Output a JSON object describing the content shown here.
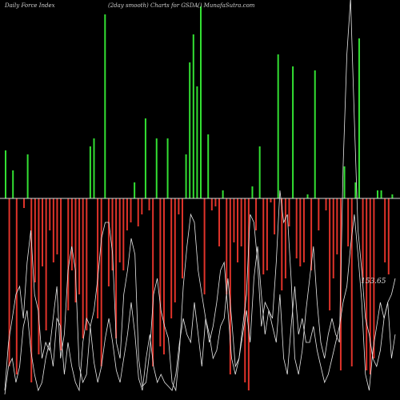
{
  "header": {
    "left": "Daily Force  Index",
    "center": "(2day smooth) Charts for GSDA",
    "right": "() MunafaSutra.com"
  },
  "chart_data": {
    "type": "bar",
    "title": "",
    "baseline": 0,
    "ylim": [
      -230,
      250
    ],
    "values": [
      60,
      -210,
      35,
      -220,
      0,
      -12,
      55,
      -230,
      -105,
      -195,
      -85,
      -165,
      -40,
      -80,
      -70,
      -190,
      0,
      -140,
      -90,
      -130,
      -120,
      -175,
      -165,
      65,
      75,
      -150,
      -210,
      230,
      -110,
      -90,
      -175,
      -80,
      -90,
      -40,
      -30,
      20,
      -35,
      -20,
      100,
      -15,
      -210,
      75,
      -185,
      -195,
      75,
      -150,
      -130,
      -20,
      -100,
      55,
      170,
      205,
      140,
      240,
      -120,
      80,
      -15,
      -10,
      -60,
      10,
      -120,
      -220,
      -55,
      -80,
      -60,
      -230,
      -240,
      15,
      -40,
      65,
      -95,
      -90,
      -5,
      -45,
      180,
      -115,
      -100,
      -35,
      165,
      -75,
      -85,
      -80,
      5,
      -90,
      160,
      -40,
      0,
      -15,
      -140,
      -100,
      -70,
      -215,
      40,
      -60,
      -210,
      20,
      200,
      -105,
      -215,
      -220,
      -200,
      10,
      10,
      -80,
      -95,
      5
    ],
    "positive_color": "#33e033",
    "negative_color": "#e0332a",
    "line_series": [
      {
        "values": [
          -240,
          -180,
          -150,
          -120,
          -110,
          -150,
          -80,
          -40,
          -120,
          -140,
          -200,
          -180,
          -190,
          -150,
          -110,
          -200,
          -170,
          -90,
          -60,
          -90,
          -210,
          -230,
          -220,
          -160,
          -140,
          -100,
          -50,
          -30,
          -30,
          -70,
          -180,
          -200,
          -120,
          -90,
          -50,
          -70,
          -200,
          -235,
          -230,
          -190,
          -120,
          -100,
          -140,
          -160,
          -175,
          -230,
          -240,
          -190,
          -110,
          -60,
          -20,
          -30,
          -90,
          -120,
          -150,
          -180,
          -160,
          -130,
          -90,
          -80,
          -140,
          -200,
          -220,
          -200,
          -160,
          -120,
          -20,
          -30,
          -80,
          -160,
          -130,
          -140,
          -150,
          -80,
          10,
          -30,
          -20,
          -100,
          -200,
          -220,
          -190,
          -140,
          -100,
          -60,
          -130,
          -180,
          -200,
          -170,
          -150,
          -170,
          -180,
          40,
          180,
          250,
          100,
          -40,
          -90,
          -150,
          -170,
          -200,
          -210,
          -190,
          -150,
          -130,
          -120,
          -100
        ]
      },
      {
        "values": [
          -245,
          -210,
          -200,
          -230,
          -210,
          -160,
          -140,
          -190,
          -220,
          -240,
          -230,
          -200,
          -180,
          -210,
          -150,
          -160,
          -220,
          -180,
          -210,
          -230,
          -240,
          -180,
          -150,
          -160,
          -205,
          -230,
          -210,
          -175,
          -150,
          -180,
          -215,
          -230,
          -200,
          -170,
          -130,
          -170,
          -225,
          -240,
          -200,
          -170,
          -210,
          -230,
          -220,
          -230,
          -235,
          -240,
          -220,
          -180,
          -150,
          -170,
          -180,
          -130,
          -170,
          -210,
          -150,
          -170,
          -200,
          -190,
          -160,
          -150,
          -100,
          -150,
          -210,
          -200,
          -170,
          -140,
          -180,
          -100,
          -60,
          -120,
          -170,
          -140,
          -160,
          -180,
          -120,
          -200,
          -220,
          -160,
          -110,
          -170,
          -150,
          -180,
          -180,
          -160,
          -190,
          -210,
          -230,
          -220,
          -200,
          -180,
          -160,
          -130,
          -110,
          -60,
          -20,
          -70,
          -130,
          -220,
          -240,
          -190,
          -160,
          -130,
          -150,
          -130,
          -200,
          -170
        ]
      }
    ],
    "line_color": "#e8e8e8",
    "last_value": "153.65"
  }
}
